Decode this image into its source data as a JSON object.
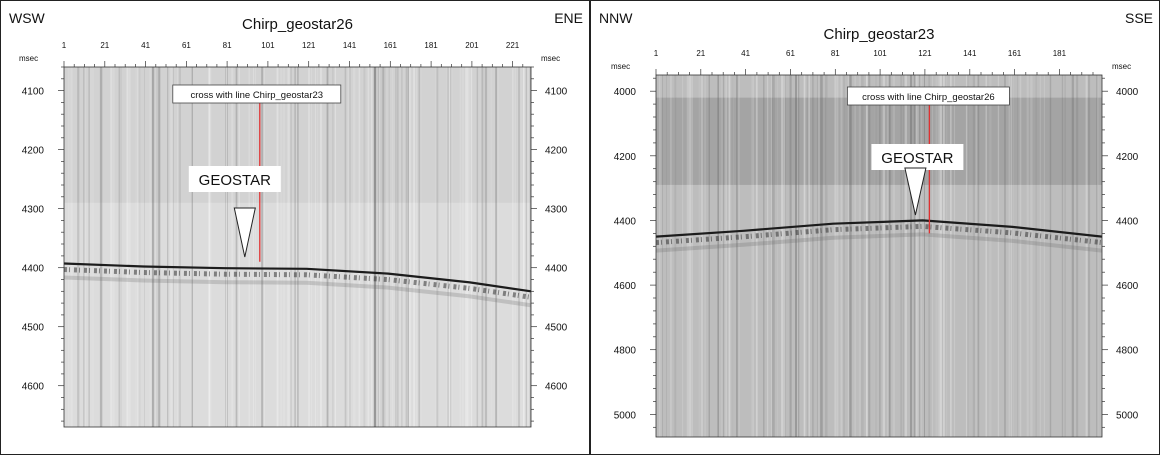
{
  "panels": [
    {
      "id": "left",
      "dir_left": "WSW",
      "dir_right": "ENE",
      "title": "Chirp_geostar26",
      "unit_left": "msec",
      "unit_right": "msec",
      "trace_labels": [
        "1",
        "21",
        "41",
        "61",
        "81",
        "101",
        "121",
        "141",
        "161",
        "181",
        "201",
        "221"
      ],
      "trace_range": [
        1,
        230
      ],
      "depth_labels": [
        4100,
        4200,
        4300,
        4400,
        4500,
        4600
      ],
      "depth_range": [
        4060,
        4670
      ],
      "annotation": "cross with line Chirp_geostar23",
      "marker_label": "GEOSTAR",
      "crossing_trace": 97,
      "seafloor": [
        [
          1,
          4393
        ],
        [
          40,
          4398
        ],
        [
          80,
          4401
        ],
        [
          120,
          4402
        ],
        [
          160,
          4410
        ],
        [
          200,
          4425
        ],
        [
          230,
          4440
        ]
      ],
      "upper_band_ms": [
        4060,
        4290
      ],
      "colors": {
        "background": "#e8e8e8",
        "upper_band": "#d2d2d2",
        "lower": "#dcdcdc",
        "crossing_line": "#e03030",
        "seafloor": "#1c1c1c"
      }
    },
    {
      "id": "right",
      "dir_left": "NNW",
      "dir_right": "SSE",
      "title": "Chirp_geostar23",
      "unit_left": "msec",
      "unit_right": "msec",
      "trace_labels": [
        "1",
        "21",
        "41",
        "61",
        "81",
        "101",
        "121",
        "141",
        "161",
        "181"
      ],
      "trace_range": [
        1,
        200
      ],
      "depth_labels": [
        4000,
        4200,
        4400,
        4600,
        4800,
        5000
      ],
      "depth_range": [
        3950,
        5070
      ],
      "annotation": "cross with line Chirp_geostar26",
      "marker_label": "GEOSTAR",
      "crossing_trace": 123,
      "seafloor": [
        [
          1,
          4450
        ],
        [
          40,
          4432
        ],
        [
          80,
          4410
        ],
        [
          120,
          4400
        ],
        [
          160,
          4420
        ],
        [
          200,
          4450
        ]
      ],
      "upper_band_ms": [
        4020,
        4290
      ],
      "colors": {
        "background": "#cfcfcf",
        "upper_band": "#a4a4a4",
        "lower": "#bdbdbd",
        "crossing_line": "#e03030",
        "seafloor": "#1c1c1c"
      }
    }
  ]
}
